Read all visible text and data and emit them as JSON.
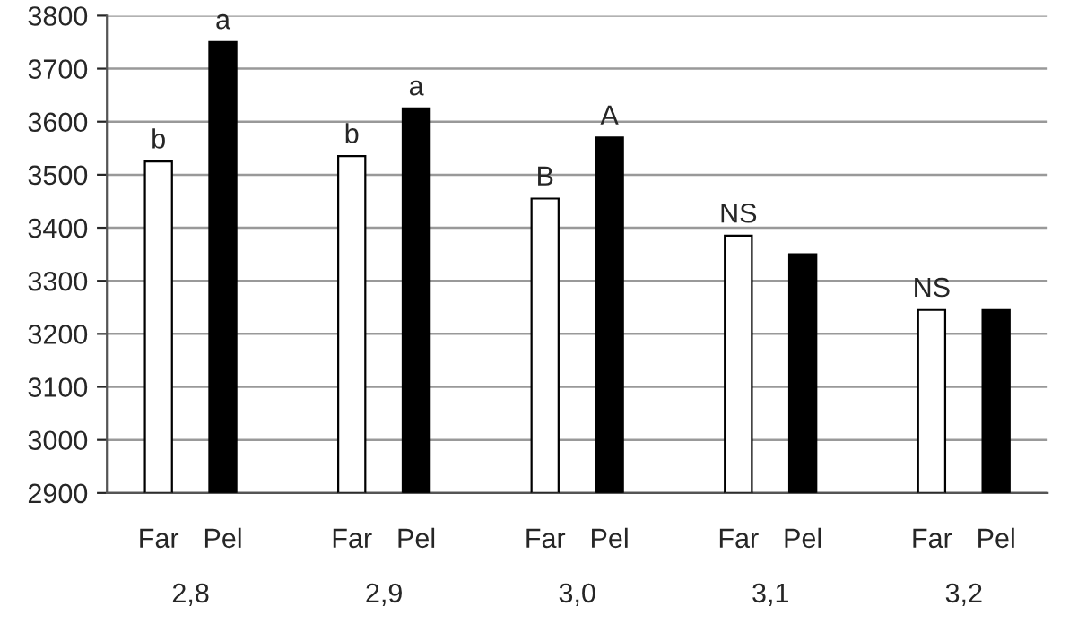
{
  "chart_data": {
    "type": "bar",
    "categories": [
      "Far",
      "Pel",
      null,
      "Far",
      "Pel",
      null,
      "Far",
      "Pel",
      null,
      "Far",
      "Pel",
      null,
      "Far",
      "Pel"
    ],
    "values": [
      3525,
      3750,
      null,
      3535,
      3625,
      null,
      3455,
      3570,
      null,
      3385,
      3350,
      null,
      3245,
      3245
    ],
    "colors": [
      "#ffffff",
      "#000000",
      null,
      "#ffffff",
      "#000000",
      null,
      "#ffffff",
      "#000000",
      null,
      "#ffffff",
      "#000000",
      null,
      "#ffffff",
      "#000000"
    ],
    "value_labels": [
      "b",
      "a",
      null,
      "b",
      "a",
      null,
      "B",
      "A",
      null,
      "NS",
      null,
      null,
      "NS",
      null
    ],
    "annotations": [
      "2,8",
      "2,9",
      "3,0",
      "3,1",
      "3,2"
    ],
    "ylim": [
      2900,
      3800
    ],
    "yticks": [
      2900,
      3000,
      3100,
      3200,
      3300,
      3400,
      3500,
      3600,
      3700,
      3800
    ],
    "grid": "y"
  }
}
